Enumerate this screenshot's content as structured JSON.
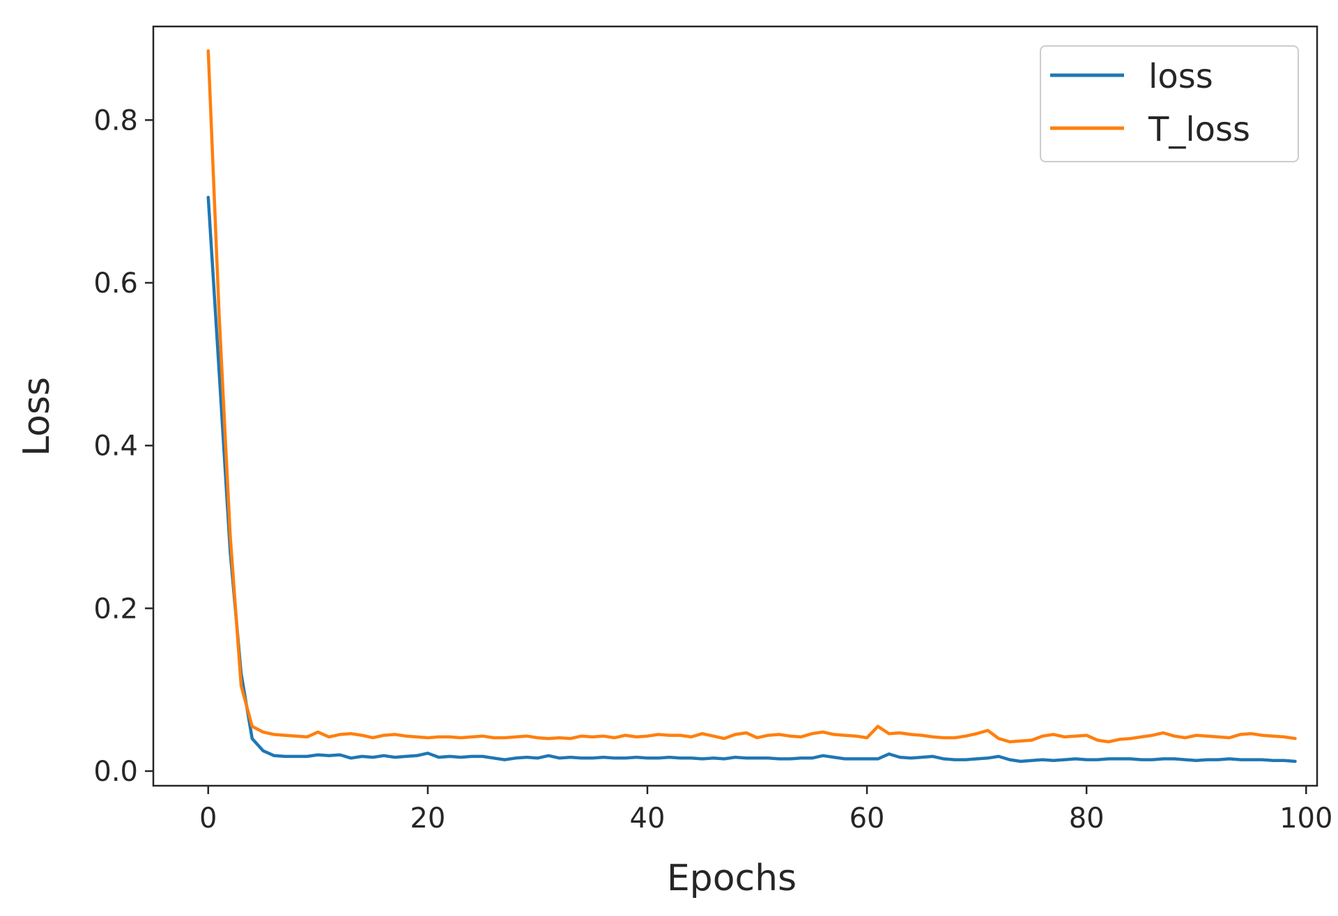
{
  "chart_data": {
    "type": "line",
    "title": "",
    "xlabel": "Epochs",
    "ylabel": "Loss",
    "xlim": [
      -5,
      101
    ],
    "ylim": [
      -0.018,
      0.915
    ],
    "xticks": [
      0,
      20,
      40,
      60,
      80,
      100
    ],
    "xtick_labels": [
      "0",
      "20",
      "40",
      "60",
      "80",
      "100"
    ],
    "yticks": [
      0.0,
      0.2,
      0.4,
      0.6,
      0.8
    ],
    "ytick_labels": [
      "0.0",
      "0.2",
      "0.4",
      "0.6",
      "0.8"
    ],
    "grid": false,
    "legend_position": "top-right",
    "x": [
      0,
      1,
      2,
      3,
      4,
      5,
      6,
      7,
      8,
      9,
      10,
      11,
      12,
      13,
      14,
      15,
      16,
      17,
      18,
      19,
      20,
      21,
      22,
      23,
      24,
      25,
      26,
      27,
      28,
      29,
      30,
      31,
      32,
      33,
      34,
      35,
      36,
      37,
      38,
      39,
      40,
      41,
      42,
      43,
      44,
      45,
      46,
      47,
      48,
      49,
      50,
      51,
      52,
      53,
      54,
      55,
      56,
      57,
      58,
      59,
      60,
      61,
      62,
      63,
      64,
      65,
      66,
      67,
      68,
      69,
      70,
      71,
      72,
      73,
      74,
      75,
      76,
      77,
      78,
      79,
      80,
      81,
      82,
      83,
      84,
      85,
      86,
      87,
      88,
      89,
      90,
      91,
      92,
      93,
      94,
      95,
      96,
      97,
      98,
      99
    ],
    "series": [
      {
        "name": "loss",
        "color": "#1f77b4",
        "values": [
          0.705,
          0.49,
          0.27,
          0.12,
          0.04,
          0.025,
          0.019,
          0.018,
          0.018,
          0.018,
          0.02,
          0.019,
          0.02,
          0.016,
          0.018,
          0.017,
          0.019,
          0.017,
          0.018,
          0.019,
          0.022,
          0.017,
          0.018,
          0.017,
          0.018,
          0.018,
          0.016,
          0.014,
          0.016,
          0.017,
          0.016,
          0.019,
          0.016,
          0.017,
          0.016,
          0.016,
          0.017,
          0.016,
          0.016,
          0.017,
          0.016,
          0.016,
          0.017,
          0.016,
          0.016,
          0.015,
          0.016,
          0.015,
          0.017,
          0.016,
          0.016,
          0.016,
          0.015,
          0.015,
          0.016,
          0.016,
          0.019,
          0.017,
          0.015,
          0.015,
          0.015,
          0.015,
          0.021,
          0.017,
          0.016,
          0.017,
          0.018,
          0.015,
          0.014,
          0.014,
          0.015,
          0.016,
          0.018,
          0.014,
          0.012,
          0.013,
          0.014,
          0.013,
          0.014,
          0.015,
          0.014,
          0.014,
          0.015,
          0.015,
          0.015,
          0.014,
          0.014,
          0.015,
          0.015,
          0.014,
          0.013,
          0.014,
          0.014,
          0.015,
          0.014,
          0.014,
          0.014,
          0.013,
          0.013,
          0.012
        ]
      },
      {
        "name": "T_loss",
        "color": "#ff7f0e",
        "values": [
          0.885,
          0.56,
          0.29,
          0.105,
          0.055,
          0.048,
          0.045,
          0.044,
          0.043,
          0.042,
          0.048,
          0.042,
          0.045,
          0.046,
          0.044,
          0.041,
          0.044,
          0.045,
          0.043,
          0.042,
          0.041,
          0.042,
          0.042,
          0.041,
          0.042,
          0.043,
          0.041,
          0.041,
          0.042,
          0.043,
          0.041,
          0.04,
          0.041,
          0.04,
          0.043,
          0.042,
          0.043,
          0.041,
          0.044,
          0.042,
          0.043,
          0.045,
          0.044,
          0.044,
          0.042,
          0.046,
          0.043,
          0.04,
          0.045,
          0.047,
          0.041,
          0.044,
          0.045,
          0.043,
          0.042,
          0.046,
          0.048,
          0.045,
          0.044,
          0.043,
          0.041,
          0.055,
          0.046,
          0.047,
          0.045,
          0.044,
          0.042,
          0.041,
          0.041,
          0.043,
          0.046,
          0.05,
          0.04,
          0.036,
          0.037,
          0.038,
          0.043,
          0.045,
          0.042,
          0.043,
          0.044,
          0.038,
          0.036,
          0.039,
          0.04,
          0.042,
          0.044,
          0.047,
          0.043,
          0.041,
          0.044,
          0.043,
          0.042,
          0.041,
          0.045,
          0.046,
          0.044,
          0.043,
          0.042,
          0.04
        ]
      }
    ]
  }
}
